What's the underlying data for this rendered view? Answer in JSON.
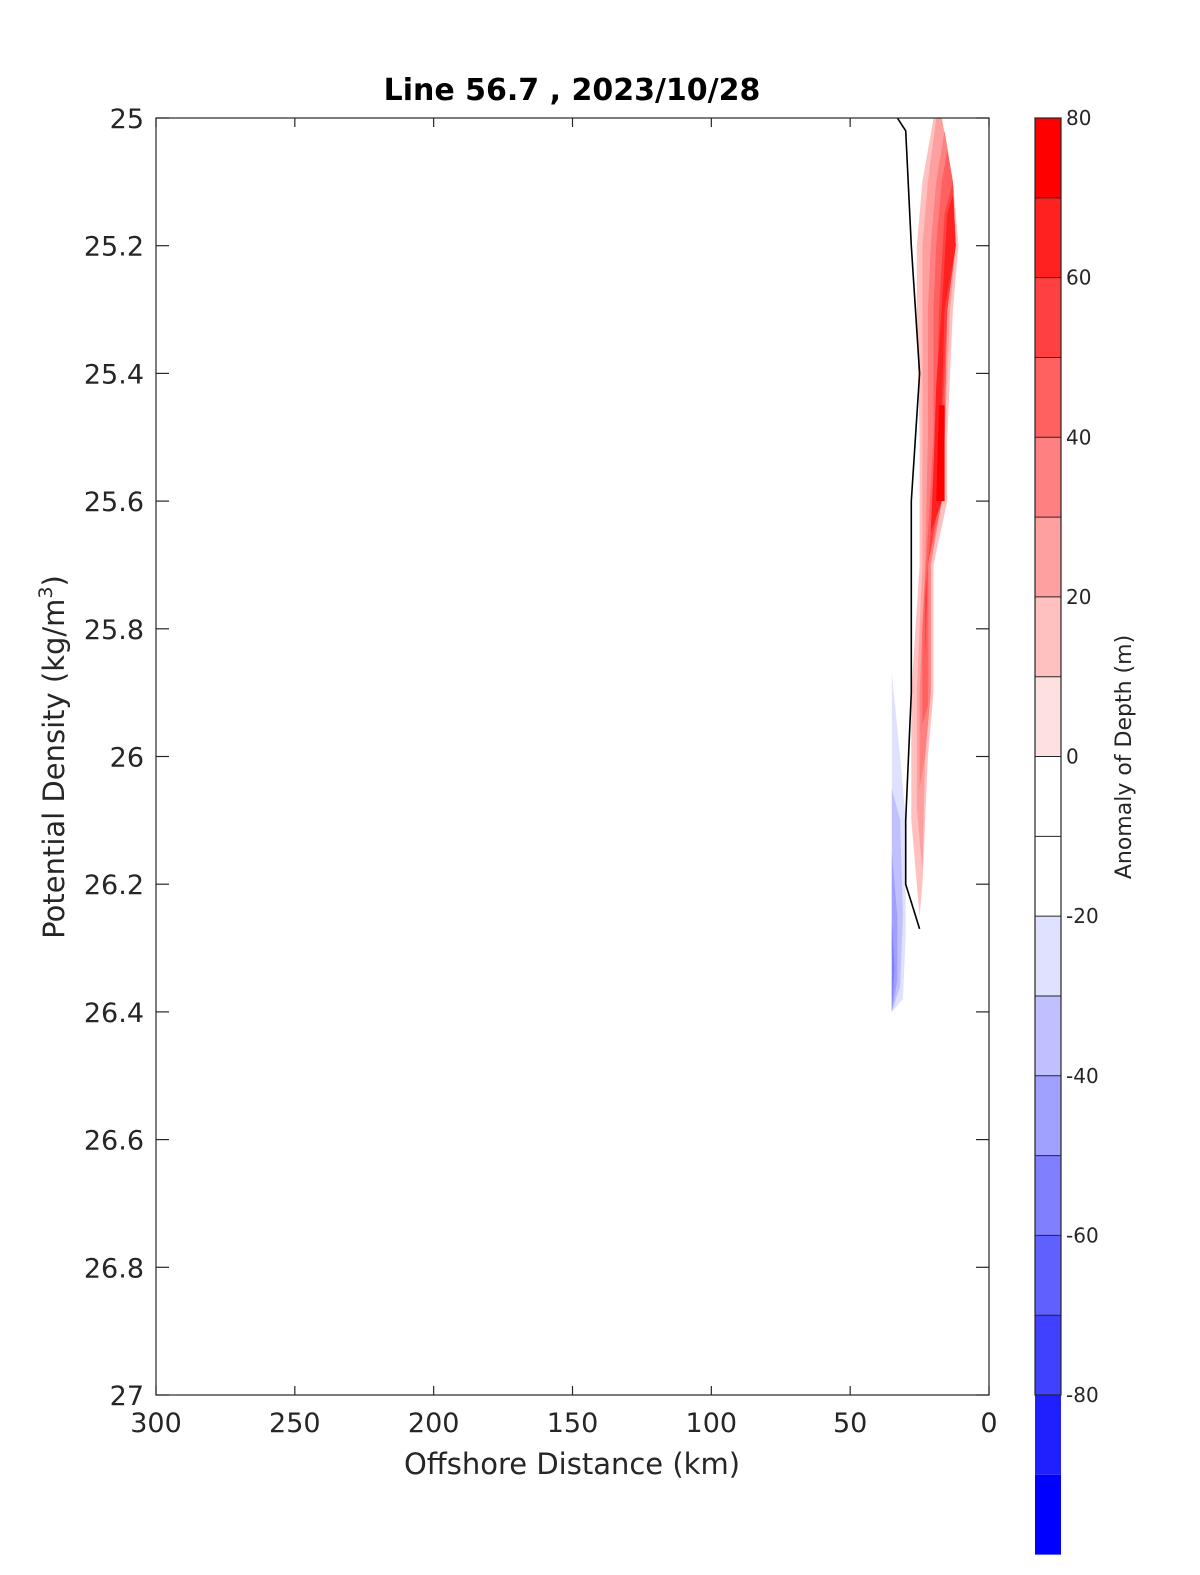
{
  "chart_data": {
    "type": "contourf",
    "title": "Line 56.7 , 2023/10/28",
    "xlabel": "Offshore Distance (km)",
    "ylabel_main": "Potential Density (kg/m",
    "ylabel_sup": "3",
    "ylabel_end": ")",
    "xlim": [
      300,
      0
    ],
    "x_reversed": true,
    "ylim": [
      25,
      27
    ],
    "y_reversed": true,
    "x_ticks": [
      300,
      250,
      200,
      150,
      100,
      50,
      0
    ],
    "x_tick_labels": [
      "300",
      "250",
      "200",
      "150",
      "100",
      "50",
      "0"
    ],
    "y_ticks": [
      25,
      25.2,
      25.4,
      25.6,
      25.8,
      26,
      26.2,
      26.4,
      26.6,
      26.8,
      27
    ],
    "y_tick_labels": [
      "25",
      "25.2",
      "25.4",
      "25.6",
      "25.8",
      "26",
      "26.2",
      "26.4",
      "26.6",
      "26.8",
      "27"
    ],
    "colorbar": {
      "label": "Anomaly of Depth (m)",
      "range": [
        -80,
        80
      ],
      "level_step": 10,
      "ticks": [
        80,
        60,
        40,
        20,
        0,
        -20,
        -40,
        -60,
        -80
      ],
      "tick_labels": [
        "80",
        "60",
        "40",
        "20",
        "0",
        "-20",
        "-40",
        "-60",
        "-80"
      ],
      "band_colors": [
        "#ff0000",
        "#ff2020",
        "#ff4040",
        "#ff6060",
        "#ff8080",
        "#ffa0a0",
        "#ffc0c0",
        "#ffe0e0",
        "#ffffff",
        "#ffffff",
        "#e0e0ff",
        "#c0c0ff",
        "#a0a0ff",
        "#8080ff",
        "#6060ff",
        "#4040ff",
        "#2020ff",
        "#0000ff"
      ]
    },
    "positive_region": {
      "outer": [
        [
          17,
          25
        ],
        [
          13,
          25.1
        ],
        [
          11,
          25.2
        ],
        [
          13,
          25.3
        ],
        [
          15,
          25.5
        ],
        [
          15,
          25.6
        ],
        [
          20,
          25.7
        ],
        [
          20,
          25.9
        ],
        [
          22,
          26
        ],
        [
          24,
          26.2
        ],
        [
          25,
          26.25
        ],
        [
          28,
          26.1
        ],
        [
          28,
          25.9
        ],
        [
          25,
          25.7
        ],
        [
          25,
          25.5
        ],
        [
          26,
          25.3
        ],
        [
          26,
          25.2
        ],
        [
          24,
          25.1
        ],
        [
          20,
          25
        ]
      ],
      "layers": [
        {
          "level": 20,
          "polygon": [
            [
              17,
              25
            ],
            [
              13,
              25.1
            ],
            [
              12,
              25.2
            ],
            [
              14,
              25.3
            ],
            [
              16,
              25.5
            ],
            [
              17,
              25.6
            ],
            [
              21,
              25.7
            ],
            [
              21,
              25.9
            ],
            [
              23,
              26
            ],
            [
              24,
              26.18
            ],
            [
              26,
              26.08
            ],
            [
              26,
              25.9
            ],
            [
              24,
              25.7
            ],
            [
              24,
              25.5
            ],
            [
              24,
              25.3
            ],
            [
              24,
              25.2
            ],
            [
              22,
              25.1
            ],
            [
              19,
              25
            ]
          ]
        },
        {
          "level": 30,
          "polygon": [
            [
              16,
              25.02
            ],
            [
              13,
              25.1
            ],
            [
              12,
              25.2
            ],
            [
              15,
              25.3
            ],
            [
              16,
              25.5
            ],
            [
              17,
              25.6
            ],
            [
              21,
              25.7
            ],
            [
              21,
              25.9
            ],
            [
              23,
              26
            ],
            [
              25,
              26.05
            ],
            [
              25,
              25.9
            ],
            [
              23,
              25.7
            ],
            [
              22,
              25.5
            ],
            [
              22,
              25.3
            ],
            [
              21,
              25.2
            ],
            [
              19,
              25.1
            ]
          ]
        },
        {
          "level": 40,
          "polygon": [
            [
              15,
              25.05
            ],
            [
              13,
              25.1
            ],
            [
              12,
              25.2
            ],
            [
              15,
              25.3
            ],
            [
              16,
              25.5
            ],
            [
              17,
              25.6
            ],
            [
              22,
              25.7
            ],
            [
              22,
              25.92
            ],
            [
              24,
              25.95
            ],
            [
              24,
              25.8
            ],
            [
              22,
              25.65
            ],
            [
              20,
              25.5
            ],
            [
              20,
              25.3
            ],
            [
              19,
              25.2
            ],
            [
              17,
              25.1
            ]
          ]
        },
        {
          "level": 50,
          "polygon": [
            [
              13,
              25.1
            ],
            [
              12,
              25.2
            ],
            [
              15,
              25.3
            ],
            [
              17,
              25.5
            ],
            [
              18,
              25.6
            ],
            [
              22,
              25.7
            ],
            [
              23,
              25.85
            ],
            [
              23,
              25.75
            ],
            [
              20,
              25.6
            ],
            [
              19,
              25.5
            ],
            [
              18,
              25.3
            ],
            [
              16,
              25.15
            ]
          ]
        },
        {
          "level": 60,
          "polygon": [
            [
              13,
              25.12
            ],
            [
              12,
              25.2
            ],
            [
              16,
              25.3
            ],
            [
              17,
              25.45
            ],
            [
              17,
              25.6
            ],
            [
              21,
              25.65
            ],
            [
              20,
              25.55
            ],
            [
              19,
              25.42
            ],
            [
              17,
              25.3
            ],
            [
              15,
              25.15
            ]
          ]
        },
        {
          "level": 70,
          "polygon": [
            [
              16,
              25.45
            ],
            [
              16,
              25.6
            ],
            [
              19,
              25.6
            ],
            [
              18,
              25.45
            ]
          ]
        }
      ]
    },
    "negative_region": {
      "outer": [
        [
          35,
          25.53
        ],
        [
          33,
          25.6
        ],
        [
          33,
          25.8
        ],
        [
          31,
          25.9
        ],
        [
          31,
          26.1
        ],
        [
          28,
          26.3
        ],
        [
          31,
          26.4
        ],
        [
          35,
          26.4
        ],
        [
          35,
          26.2
        ],
        [
          34,
          26
        ]
      ],
      "layers": [
        {
          "level": -20,
          "polygon": [
            [
              35,
              25.87
            ],
            [
              32,
              26
            ],
            [
              30,
              26.1
            ],
            [
              30,
              26.28
            ],
            [
              31,
              26.38
            ],
            [
              35,
              26.4
            ],
            [
              35,
              26.1
            ]
          ]
        },
        {
          "level": -30,
          "polygon": [
            [
              35,
              26.05
            ],
            [
              32,
              26.1
            ],
            [
              31,
              26.25
            ],
            [
              32,
              26.36
            ],
            [
              35,
              26.4
            ]
          ]
        },
        {
          "level": -40,
          "polygon": [
            [
              35,
              26.15
            ],
            [
              33,
              26.25
            ],
            [
              33,
              26.35
            ],
            [
              35,
              26.4
            ]
          ]
        },
        {
          "level": -50,
          "polygon": [
            [
              35,
              26.26
            ],
            [
              34,
              26.33
            ],
            [
              35,
              26.4
            ]
          ]
        }
      ]
    },
    "zero_contour": [
      [
        33,
        25
      ],
      [
        30,
        25.02
      ],
      [
        28,
        25.2
      ],
      [
        25,
        25.4
      ],
      [
        28,
        25.6
      ],
      [
        28,
        25.9
      ],
      [
        30,
        26.1
      ],
      [
        30,
        26.2
      ],
      [
        25,
        26.27
      ]
    ]
  }
}
